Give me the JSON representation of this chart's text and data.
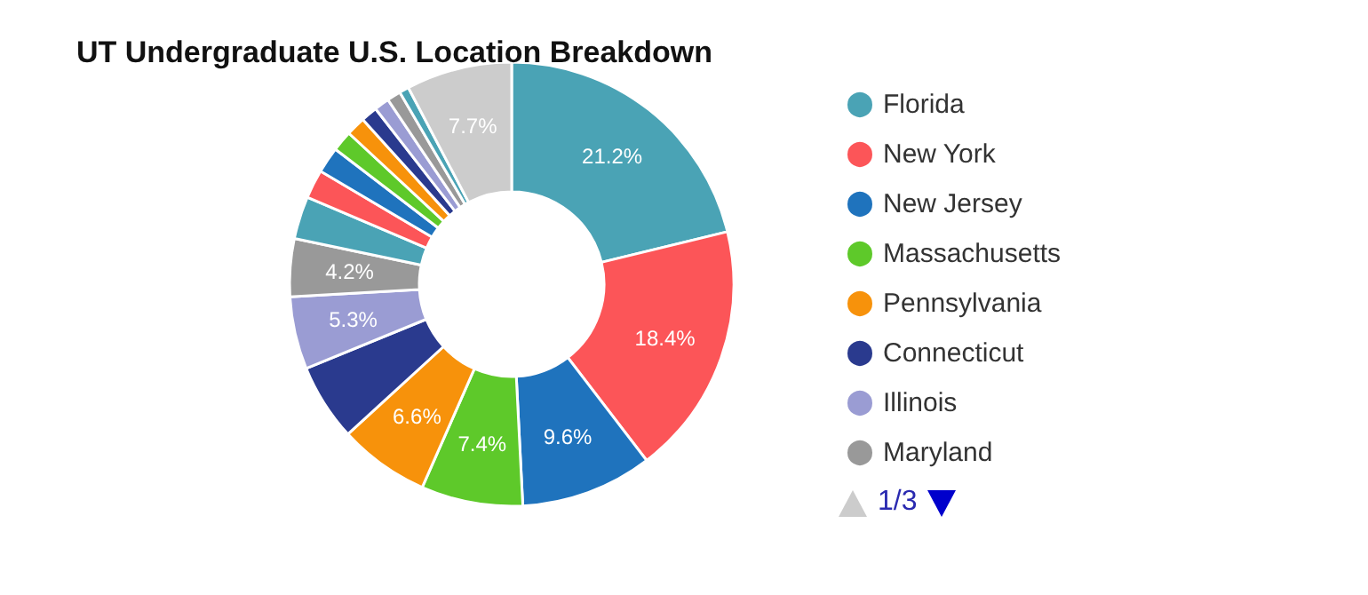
{
  "chart_data": {
    "type": "donut",
    "title": "UT Undergraduate U.S. Location Breakdown",
    "categories": [
      "Florida",
      "New York",
      "New Jersey",
      "Massachusetts",
      "Pennsylvania",
      "Connecticut",
      "Illinois",
      "Maryland",
      null,
      null,
      null,
      null,
      null,
      null,
      null,
      null,
      null,
      null
    ],
    "values": [
      21.2,
      18.4,
      9.6,
      7.4,
      6.6,
      5.6,
      5.3,
      4.2,
      3.1,
      2.1,
      1.9,
      1.5,
      1.4,
      1.2,
      1.1,
      1.0,
      0.7,
      7.7
    ],
    "colors": [
      "#4aa3b5",
      "#fc5558",
      "#1f73bd",
      "#5ec92a",
      "#f7920b",
      "#2a3a8e",
      "#9a9cd3",
      "#999999",
      "#4aa3b5",
      "#fc5558",
      "#1f73bd",
      "#5ec92a",
      "#f7920b",
      "#2a3a8e",
      "#9a9cd3",
      "#999999",
      "#4aa3b5",
      "#cccccc"
    ],
    "value_labels": [
      "21.2%",
      "18.4%",
      "9.6%",
      "7.4%",
      "6.6%",
      null,
      "5.3%",
      "4.2%",
      null,
      null,
      null,
      null,
      null,
      null,
      null,
      null,
      null,
      "7.7%"
    ],
    "annotations": [
      "1/3"
    ],
    "legend": "right"
  }
}
